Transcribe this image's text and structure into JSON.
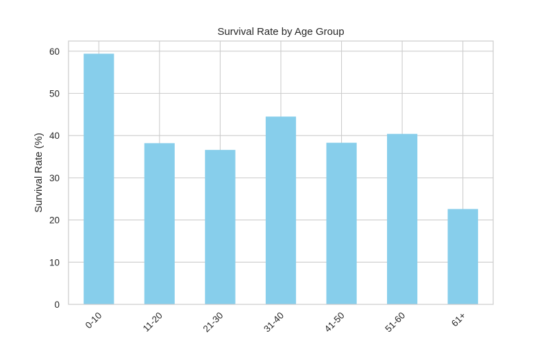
{
  "chart_data": {
    "type": "bar",
    "title": "Survival Rate by Age Group",
    "xlabel": "",
    "ylabel": "Survival Rate (%)",
    "categories": [
      "0-10",
      "11-20",
      "21-30",
      "31-40",
      "41-50",
      "51-60",
      "61+"
    ],
    "values": [
      59.4,
      38.2,
      36.6,
      44.5,
      38.3,
      40.4,
      22.6
    ],
    "ylim": [
      0,
      62.4
    ],
    "yticks": [
      0,
      10,
      20,
      30,
      40,
      50,
      60
    ],
    "bar_color": "#87ceeb",
    "grid": true,
    "legend": "none"
  }
}
